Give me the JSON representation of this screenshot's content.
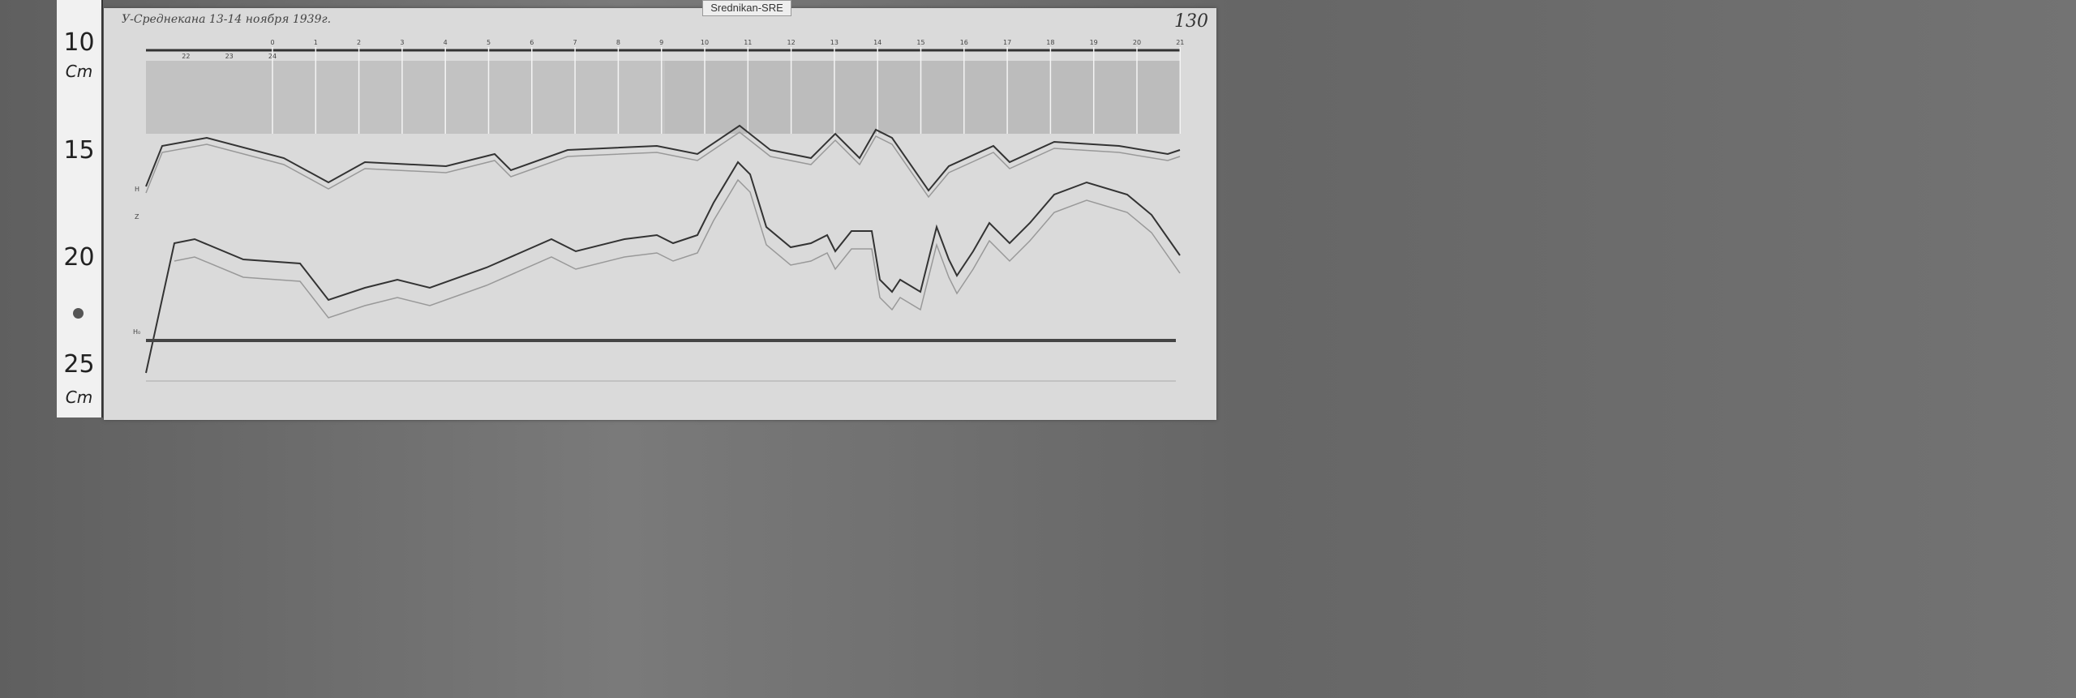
{
  "archive_label": "Srednikan-SRE",
  "record_title": "У-Среднекана 13-14 ноября 1939г.",
  "page_number": "130",
  "ruler": {
    "marks": [
      "10",
      "15",
      "20",
      "25"
    ],
    "unit": "Cm"
  },
  "trace_labels": {
    "upper": "H",
    "lower": "Z",
    "baseline": "H₀"
  },
  "hour_marks_top": [
    "0",
    "1",
    "2",
    "3",
    "4",
    "5",
    "6",
    "7",
    "8",
    "9",
    "10",
    "11",
    "12",
    "13",
    "14",
    "15",
    "16",
    "17",
    "18",
    "19",
    "20",
    "21"
  ],
  "hour_marks_bottom": [
    "22",
    "23",
    "24"
  ]
}
